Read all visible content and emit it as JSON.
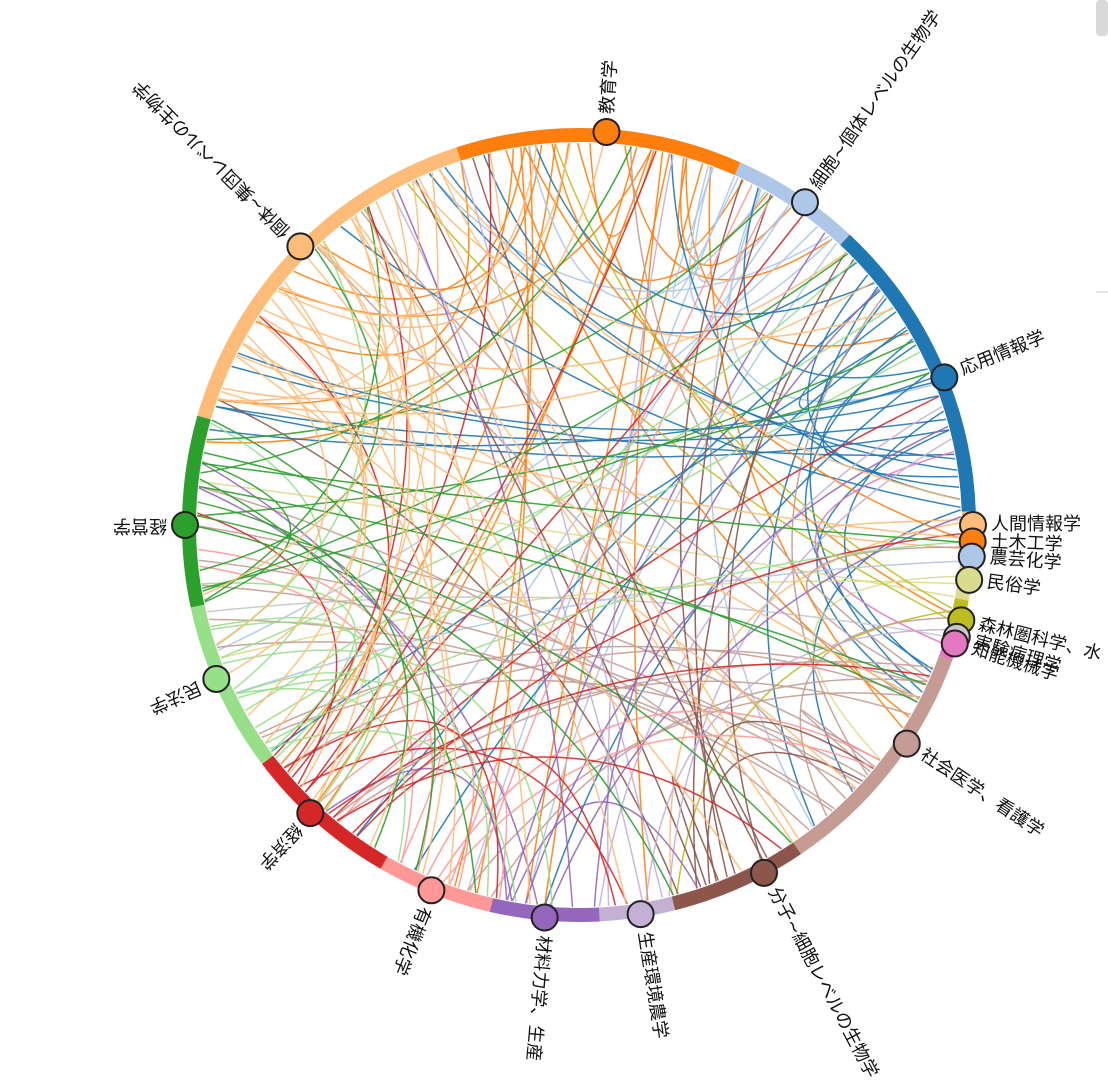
{
  "nodes": [
    {
      "label": "教育学",
      "color": "#ff7f0e"
    },
    {
      "label": "細胞~個体レベルの生物学",
      "color": "#aec7e8"
    },
    {
      "label": "応用情報学",
      "color": "#1f77b4"
    },
    {
      "label": "人間情報学",
      "color": "#ffbb78"
    },
    {
      "label": "土木工学",
      "color": "#ff7f0e"
    },
    {
      "label": "農芸化学",
      "color": "#aec7e8"
    },
    {
      "label": "民俗学",
      "color": "#dbdb8d"
    },
    {
      "label": "森林圏科学、水",
      "color": "#bcbd22"
    },
    {
      "label": "実験病理学",
      "color": "#c7c7c7"
    },
    {
      "label": "知能機械学",
      "color": "#e377c2"
    },
    {
      "label": "社会医学、看護学",
      "color": "#c49c94"
    },
    {
      "label": "分子~細胞レベルの生物学",
      "color": "#8c564b"
    },
    {
      "label": "生産環境農学",
      "color": "#c5b0d5"
    },
    {
      "label": "材料力学、生産",
      "color": "#9467bd"
    },
    {
      "label": "有機化学",
      "color": "#ff9896"
    },
    {
      "label": "経済学",
      "color": "#d62728"
    },
    {
      "label": "民法学",
      "color": "#98df8a"
    },
    {
      "label": "経営学",
      "color": "#2ca02c"
    },
    {
      "label": "個体~集団レベルの生物学",
      "color": "#ffbb78"
    }
  ]
}
